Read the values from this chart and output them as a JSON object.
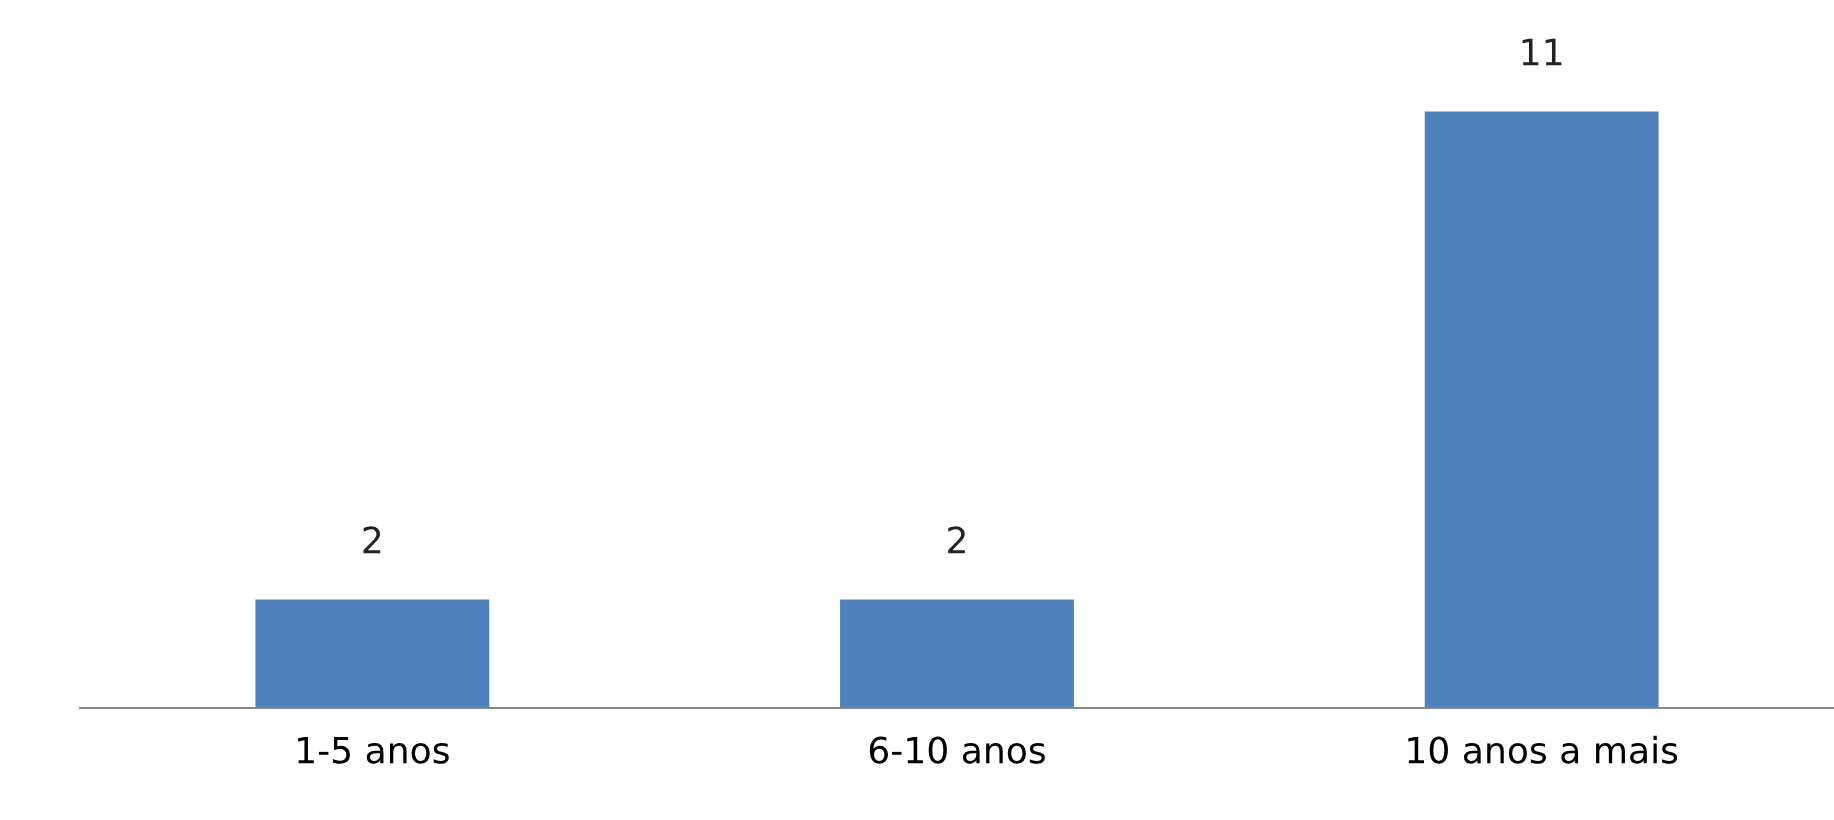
{
  "chart_data": {
    "type": "bar",
    "categories": [
      "1-5 anos",
      "6-10 anos",
      "10 anos a mais"
    ],
    "values": [
      2,
      2,
      11
    ],
    "color": "#4f81bd",
    "data_labels": true,
    "tick_labels": "x",
    "grid": false,
    "legend": false
  }
}
